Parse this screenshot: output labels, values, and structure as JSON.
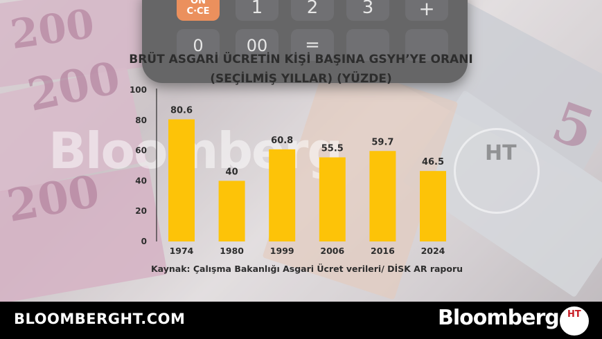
{
  "title_line1": "BRÜT ASGARİ ÜCRETİN KİŞİ BAŞINA GSYH’YE ORANI",
  "title_line2": "(SEÇİLMİŞ YILLAR) (YÜZDE)",
  "source": "Kaynak: Çalışma Bakanlığı Asgari Ücret verileri/ DİSK AR raporu",
  "watermark": "Bloomberg",
  "watermark_logo": "HT",
  "footer": {
    "site": "BLOOMBERGHT.COM",
    "brand": "Bloomberg",
    "logo_letters": "HT"
  },
  "background": {
    "calculator_keys": [
      "ON",
      "C·CE",
      "1",
      "2",
      "3",
      "+",
      "0",
      "00",
      "="
    ],
    "banknote_numbers": [
      "200",
      "200",
      "200",
      "5"
    ]
  },
  "colors": {
    "bar": "#fdc308",
    "text": "#2d2d2d",
    "footer_bg": "#000000",
    "logo_red": "#c81d25"
  },
  "chart_data": {
    "type": "bar",
    "title": "BRÜT ASGARİ ÜCRETİN KİŞİ BAŞINA GSYH’YE ORANI (SEÇİLMİŞ YILLAR) (YÜZDE)",
    "categories": [
      "1974",
      "1980",
      "1999",
      "2006",
      "2016",
      "2024"
    ],
    "values": [
      80.6,
      40,
      60.8,
      55.5,
      59.7,
      46.5
    ],
    "value_labels": [
      "80.6",
      "40",
      "60.8",
      "55.5",
      "59.7",
      "46.5"
    ],
    "ylim": [
      0,
      100
    ],
    "yticks": [
      0,
      20,
      40,
      60,
      80,
      100
    ],
    "xlabel": "",
    "ylabel": "",
    "grid": false,
    "legend": "none"
  }
}
